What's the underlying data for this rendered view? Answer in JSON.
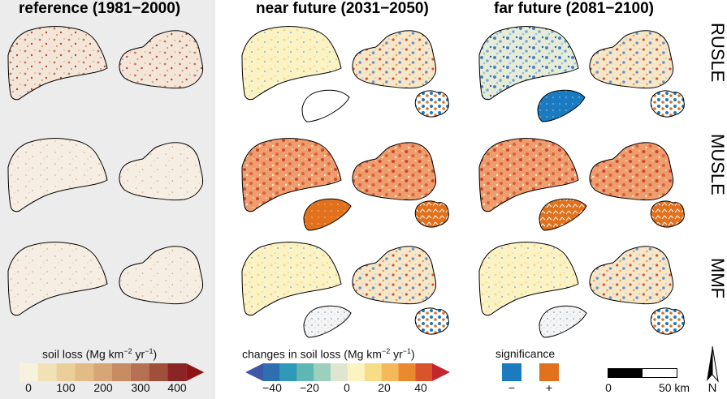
{
  "titles": {
    "reference": "reference (1981−2000)",
    "near": "near future (2031−2050)",
    "far": "far future (2081−2100)"
  },
  "rows": [
    "RUSLE",
    "MUSLE",
    "MMF"
  ],
  "legend_soil": {
    "label_main": "soil loss (Mg km",
    "exp1": "−2",
    "label_mid": " yr",
    "exp2": "−1",
    "label_end": ")",
    "ticks": [
      "0",
      "100",
      "200",
      "300",
      "400"
    ],
    "colors": [
      "#f7f2de",
      "#f1e1b5",
      "#ebcf98",
      "#e2bc84",
      "#d7a676",
      "#c88c62",
      "#b67152",
      "#a04f3a",
      "#8b2525"
    ],
    "arrow_color": "#8f1416"
  },
  "legend_change": {
    "label_main": "changes in soil loss (Mg km",
    "exp1": "−2",
    "label_mid": " yr",
    "exp2": "−1",
    "label_end": ")",
    "ticks": [
      "−40",
      "−20",
      "0",
      "20",
      "40"
    ],
    "colors": [
      "#2e6fb0",
      "#2f9ab8",
      "#5fb7b3",
      "#9cd0bd",
      "#dfe6cf",
      "#fbf4c1",
      "#f8dd87",
      "#f4b95a",
      "#e98a2e",
      "#d9542a"
    ],
    "arrow_left": "#3f57a8",
    "arrow_right": "#c2262e"
  },
  "legend_sig": {
    "label": "significance",
    "minus": "−",
    "plus": "+",
    "neg_color": "#1a7bc0",
    "pos_color": "#e2711d"
  },
  "scalebar": {
    "zero": "0",
    "max": "50 km"
  },
  "north": "N"
}
